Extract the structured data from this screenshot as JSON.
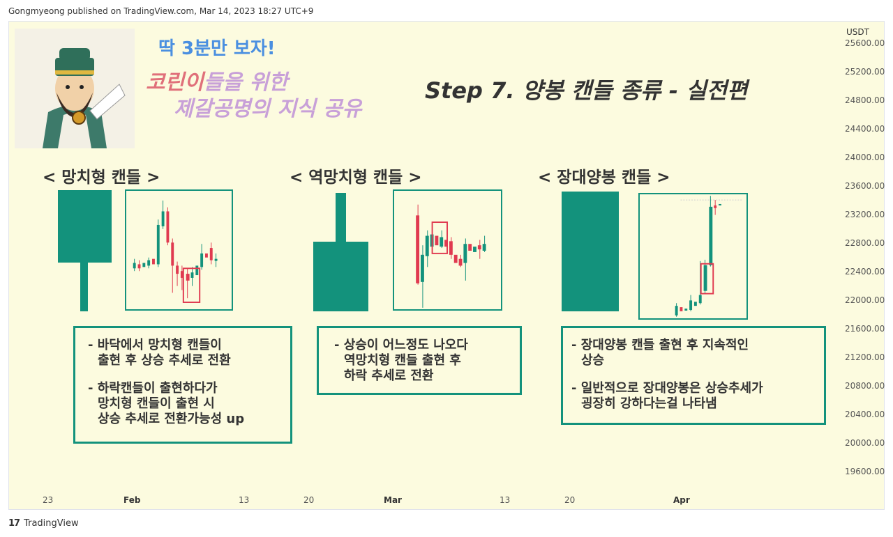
{
  "header": {
    "publisher_line": "Gongmyeong published on TradingView.com, Mar 14, 2023 18:27 UTC+9"
  },
  "title_block": {
    "line1": "딱 3분만 보자!",
    "line2_red": "코린이",
    "line2_rest": "들을 위한",
    "line3": "제갈공명의 지식 공유",
    "step_title": "Step 7. 양봉 캔들 종류 - 실전편"
  },
  "sections": [
    {
      "heading": "< 망치형 캔들 >",
      "notes": [
        "- 바닥에서 망치형 캔들이",
        "출현 후 상승 추세로 전환",
        "- 하락캔들이 출현하다가",
        "망치형 캔들이 출현 시",
        "상승 추세로 전환가능성 up"
      ]
    },
    {
      "heading": "< 역망치형 캔들 >",
      "notes": [
        "- 상승이 어느정도 나오다",
        "역망치형 캔들 출현 후",
        "하락 추세로 전환"
      ]
    },
    {
      "heading": "< 장대양봉 캔들 >",
      "notes": [
        "- 장대양봉 캔들 출현 후 지속적인",
        "상승",
        "- 일반적으로 장대양봉은 상승추세가",
        "굉장히 강하다는걸 나타냄"
      ]
    }
  ],
  "price_axis": {
    "unit": "USDT",
    "ticks": [
      "25600.00",
      "25200.00",
      "24800.00",
      "24400.00",
      "24000.00",
      "23600.00",
      "23200.00",
      "22800.00",
      "22400.00",
      "22000.00",
      "21600.00",
      "21200.00",
      "20800.00",
      "20400.00",
      "20000.00",
      "19600.00"
    ]
  },
  "time_axis": {
    "ticks": [
      "23",
      "Feb",
      "13",
      "20",
      "Mar",
      "13",
      "20",
      "Apr"
    ]
  },
  "footer": {
    "brand": "TradingView",
    "logo": "17"
  },
  "colors": {
    "up": "#13927c",
    "down": "#e03a50",
    "highlight": "#e03a50",
    "background": "#fcfbdf",
    "accent_blue": "#4a8fe0"
  },
  "icons": {
    "avatar": "zhuge-liang-cartoon-avatar",
    "logo": "tradingview-logo"
  }
}
